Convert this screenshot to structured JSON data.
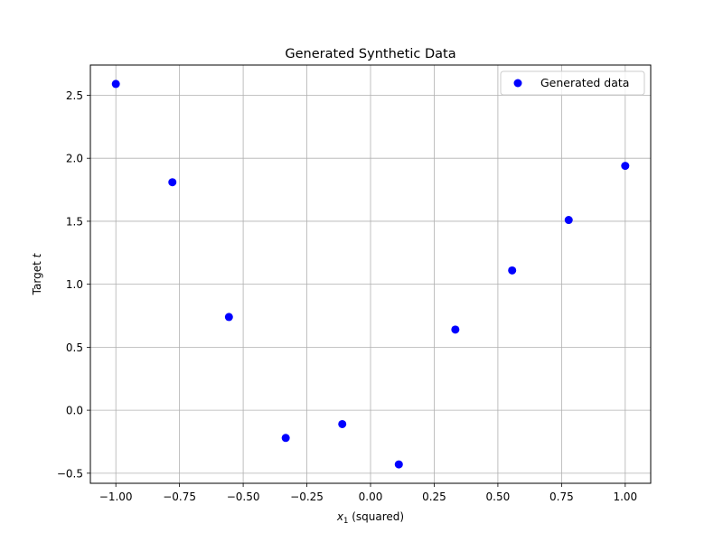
{
  "chart_data": {
    "type": "scatter",
    "title": "Generated Synthetic Data",
    "xlabel": {
      "var": "x",
      "sub": "1",
      "rest": " (squared)"
    },
    "ylabel": {
      "text": "Target ",
      "var": "t"
    },
    "xlim": [
      -1.1,
      1.1
    ],
    "ylim": [
      -0.58,
      2.74
    ],
    "xticks": [
      -1.0,
      -0.75,
      -0.5,
      -0.25,
      0.0,
      0.25,
      0.5,
      0.75,
      1.0
    ],
    "xtick_labels": [
      "−1.00",
      "−0.75",
      "−0.50",
      "−0.25",
      "0.00",
      "0.25",
      "0.50",
      "0.75",
      "1.00"
    ],
    "yticks": [
      -0.5,
      0.0,
      0.5,
      1.0,
      1.5,
      2.0,
      2.5
    ],
    "ytick_labels": [
      "−0.5",
      "0.0",
      "0.5",
      "1.0",
      "1.5",
      "2.0",
      "2.5"
    ],
    "grid": true,
    "legend": {
      "placement": "top-right",
      "label": "Generated data"
    },
    "series": [
      {
        "name": "Generated data",
        "color": "#0000ff",
        "x": [
          -1.0,
          -0.778,
          -0.556,
          -0.333,
          -0.111,
          0.111,
          0.333,
          0.556,
          0.778,
          1.0
        ],
        "y": [
          2.59,
          1.81,
          0.74,
          -0.22,
          -0.11,
          -0.43,
          0.64,
          1.11,
          1.51,
          1.94
        ]
      }
    ]
  }
}
